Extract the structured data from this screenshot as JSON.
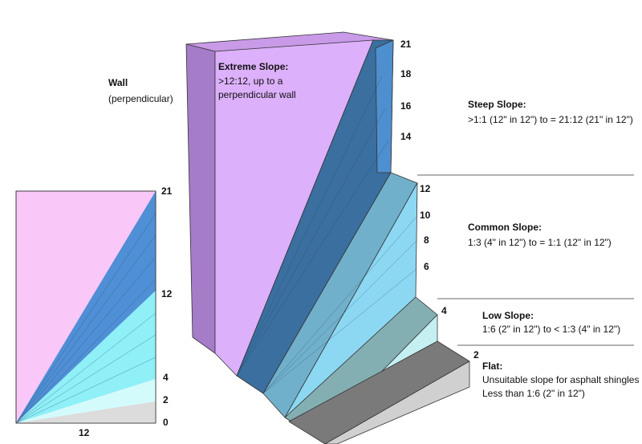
{
  "wall": {
    "title": "Wall",
    "subtitle": "(perpendicular)"
  },
  "left_diagram": {
    "rise_labels": [
      21,
      12,
      4,
      2,
      0
    ],
    "run_label": 12
  },
  "scale_labels": [
    21,
    18,
    16,
    14,
    12,
    10,
    8,
    6,
    4,
    2
  ],
  "zones": [
    {
      "title": "Extreme Slope:",
      "lines": [
        ">12:12, up to a",
        "perpendicular wall"
      ]
    },
    {
      "title": "Steep Slope:",
      "lines": [
        ">1:1 (12\" in 12\") to = 21:12 (21\" in 12\")"
      ]
    },
    {
      "title": "Common Slope:",
      "lines": [
        "1:3 (4\" in 12\") to = 1:1 (12\" in 12\")"
      ]
    },
    {
      "title": "Low Slope:",
      "lines": [
        "1:6 (2\" in 12\") to < 1:3 (4\" in 12\")"
      ]
    },
    {
      "title": "Flat:",
      "lines": [
        "Unsuitable slope for asphalt shingles",
        "Less than 1:6 (2\" in 12\")"
      ]
    }
  ]
}
